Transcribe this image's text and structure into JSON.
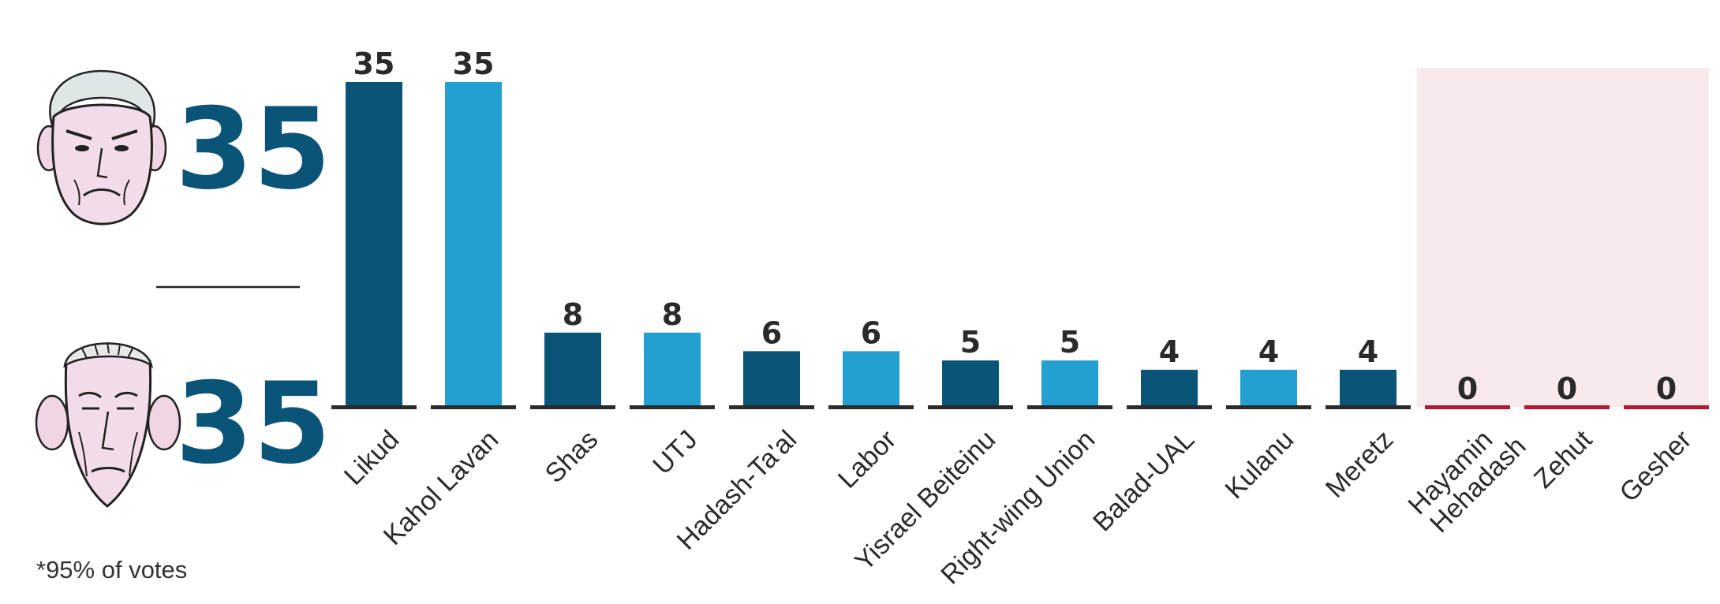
{
  "colors": {
    "dark_bar": "#0a5478",
    "light_bar": "#23a0d0",
    "zero_bar": "#b01a32",
    "highlight_band": "#f7e9ec",
    "baseline": "#2a2a2a",
    "big_number": "#0a5478"
  },
  "leaders": [
    {
      "name": "netanyahu",
      "icon": "caricature-face-icon",
      "seats": "35"
    },
    {
      "name": "gantz",
      "icon": "caricature-face-icon",
      "seats": "35"
    }
  ],
  "footnote": "*95% of votes",
  "chart_data": {
    "type": "bar",
    "categories": [
      "Likud",
      "Kahol Lavan",
      "Shas",
      "UTJ",
      "Hadash-Ta'al",
      "Labor",
      "Yisrael Beiteinu",
      "Right-wing Union",
      "Balad-UAL",
      "Kulanu",
      "Meretz",
      "Hayamin Hehadash",
      "Zehut",
      "Gesher"
    ],
    "values": [
      35,
      35,
      8,
      8,
      6,
      6,
      5,
      5,
      4,
      4,
      4,
      0,
      0,
      0
    ],
    "data_labels": [
      "35",
      "35",
      "8",
      "8",
      "6",
      "6",
      "5",
      "5",
      "4",
      "4",
      "4",
      "0",
      "0",
      "0"
    ],
    "ylim": [
      0,
      35
    ],
    "title": "",
    "xlabel": "",
    "ylabel": "",
    "grid": false,
    "highlighted_categories": [
      "Hayamin Hehadash",
      "Zehut",
      "Gesher"
    ]
  }
}
